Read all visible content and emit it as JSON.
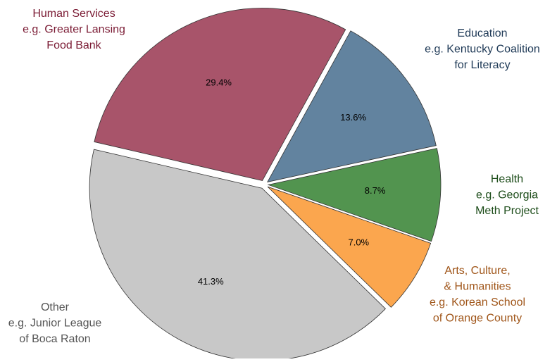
{
  "chart_data": {
    "type": "pie",
    "categories": [
      [
        "Human Services",
        "e.g. Greater Lansing",
        "Food Bank"
      ],
      [
        "Education",
        "e.g. Kentucky Coalition",
        "for Literacy"
      ],
      [
        "Health",
        "e.g. Georgia",
        "Meth Project"
      ],
      [
        "Arts, Culture,",
        "& Humanities",
        "e.g. Korean School",
        "of Orange County"
      ],
      [
        "Other",
        "e.g. Junior League",
        "of Boca Raton"
      ]
    ],
    "values": [
      29.4,
      13.6,
      8.7,
      7.0,
      41.3
    ],
    "value_labels": [
      "29.4%",
      "13.6%",
      "8.7%",
      "7.0%",
      "41.3%"
    ],
    "colors": [
      "#a8546a",
      "#62839f",
      "#52944f",
      "#fba64e",
      "#c8c8c8"
    ],
    "label_colors": [
      "#7a1a33",
      "#1f3a57",
      "#1d4d1a",
      "#a0561a",
      "#555555"
    ]
  }
}
